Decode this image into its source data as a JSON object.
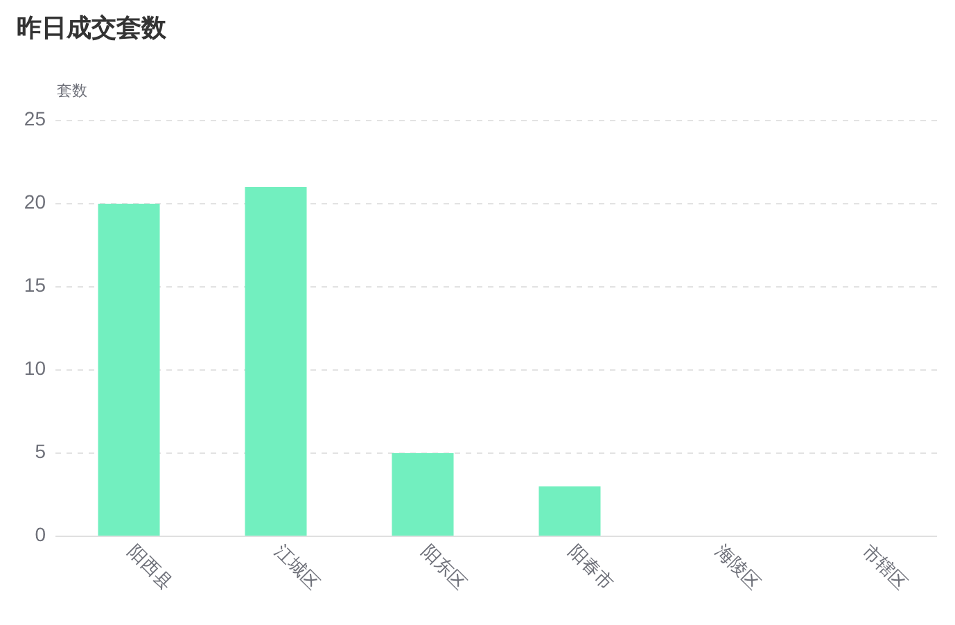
{
  "chart_data": {
    "type": "bar",
    "title": "昨日成交套数",
    "ylabel": "套数",
    "categories": [
      "阳西县",
      "江城区",
      "阳东区",
      "阳春市",
      "海陵区",
      "市辖区"
    ],
    "values": [
      20,
      21,
      5,
      3,
      0,
      0
    ],
    "color": "#72efbf",
    "ylim": [
      0,
      25
    ],
    "yticks": [
      0,
      5,
      10,
      15,
      20,
      25
    ],
    "grid": "y"
  }
}
